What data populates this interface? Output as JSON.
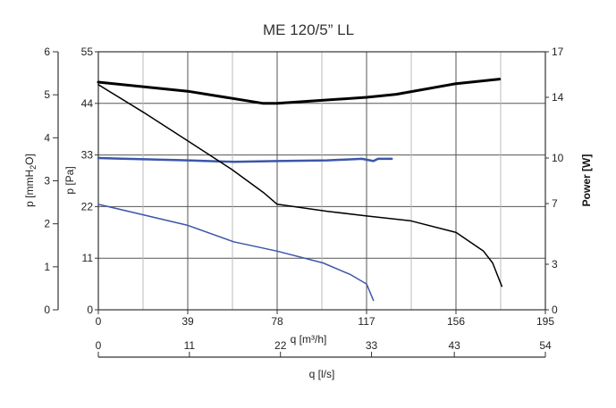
{
  "chart_data": {
    "type": "line",
    "title": "ME 120/5” LL",
    "x_axis_m3h": {
      "label": "q [m³/h]",
      "ticks": [
        0,
        39,
        78,
        117,
        156,
        195
      ],
      "range": [
        0,
        195
      ]
    },
    "x_axis_ls": {
      "label": "q [l/s]",
      "ticks": [
        0,
        11,
        22,
        33,
        43,
        54
      ],
      "range": [
        0,
        54
      ]
    },
    "y_axis_pa": {
      "label": "p [Pa]",
      "ticks": [
        0,
        11,
        22,
        33,
        44,
        55
      ],
      "range": [
        0,
        55
      ]
    },
    "y_axis_mmh2o": {
      "label": "p [mmH2O]",
      "ticks": [
        0,
        1,
        2,
        3,
        4,
        5,
        6
      ],
      "range": [
        0,
        6
      ]
    },
    "y_axis_power": {
      "label": "Power [W]",
      "ticks": [
        0,
        3,
        7,
        10,
        14,
        17
      ],
      "range": [
        0,
        17
      ]
    },
    "grid": true,
    "series": [
      {
        "axis": "power",
        "color": "#000000",
        "points": [
          [
            0,
            15.0
          ],
          [
            39,
            14.4
          ],
          [
            72,
            13.6
          ],
          [
            78,
            13.6
          ],
          [
            117,
            14.0
          ],
          [
            130,
            14.2
          ],
          [
            156,
            14.9
          ],
          [
            175,
            15.2
          ]
        ]
      },
      {
        "axis": "power",
        "color": "#3c56a8",
        "points": [
          [
            0,
            10.0
          ],
          [
            39,
            9.85
          ],
          [
            59,
            9.75
          ],
          [
            78,
            9.8
          ],
          [
            100,
            9.85
          ],
          [
            115,
            9.95
          ],
          [
            120,
            9.8
          ],
          [
            122,
            9.95
          ],
          [
            128,
            9.95
          ]
        ]
      },
      {
        "axis": "pressure",
        "color": "#000000",
        "points": [
          [
            0,
            48.0
          ],
          [
            20,
            42.0
          ],
          [
            39,
            36.0
          ],
          [
            58,
            30.0
          ],
          [
            72,
            25.0
          ],
          [
            78,
            22.5
          ],
          [
            100,
            21.0
          ],
          [
            117,
            20.0
          ],
          [
            136,
            19.0
          ],
          [
            156,
            16.5
          ],
          [
            168,
            12.5
          ],
          [
            172,
            10.0
          ],
          [
            176,
            5.0
          ]
        ]
      },
      {
        "axis": "pressure",
        "color": "#3c56a8",
        "points": [
          [
            0,
            22.5
          ],
          [
            39,
            18.0
          ],
          [
            59,
            14.5
          ],
          [
            78,
            12.5
          ],
          [
            98,
            10.0
          ],
          [
            110,
            7.5
          ],
          [
            117,
            5.5
          ],
          [
            120,
            2.0
          ]
        ]
      }
    ]
  }
}
